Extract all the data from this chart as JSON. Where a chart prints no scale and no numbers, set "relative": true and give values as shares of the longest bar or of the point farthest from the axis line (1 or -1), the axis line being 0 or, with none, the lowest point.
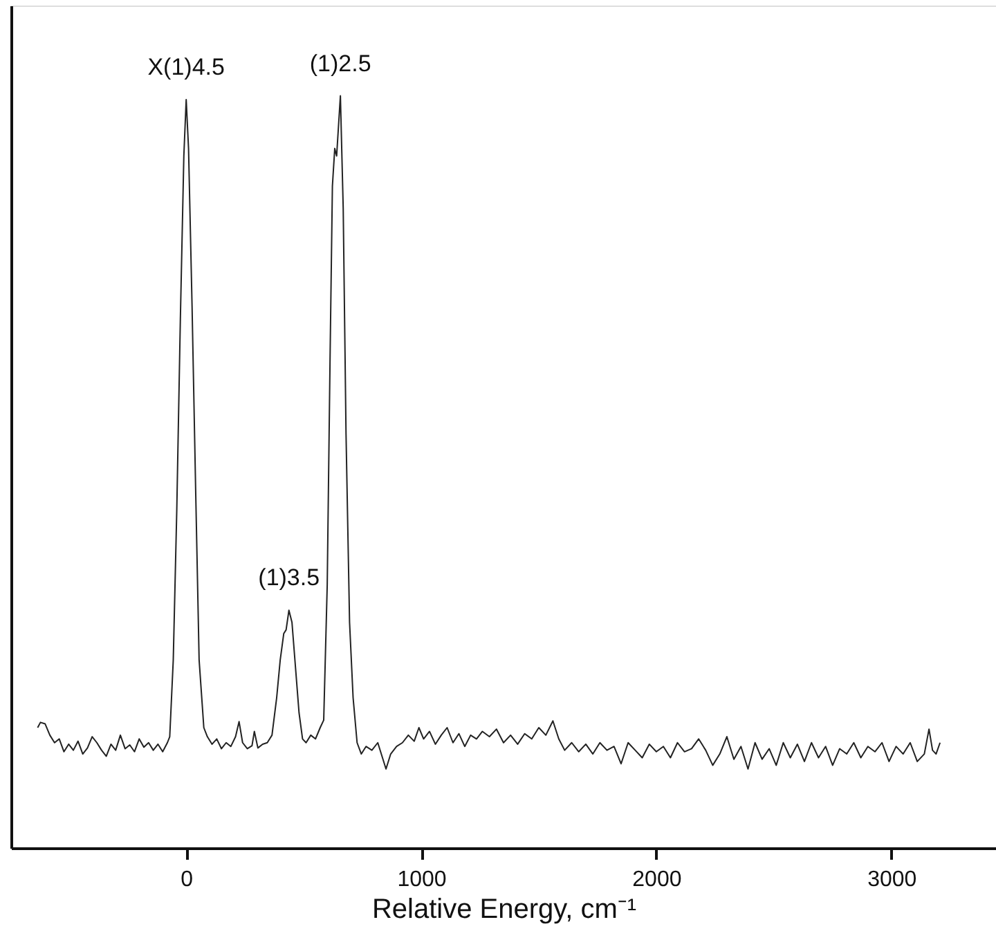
{
  "chart_data": {
    "type": "line",
    "relative": true,
    "xlabel": "Relative Energy, cm⁻¹",
    "xlim": [
      -745,
      3445
    ],
    "xticks": [
      0,
      1000,
      2000,
      3000
    ],
    "grid": false,
    "marker": "none",
    "line_style": "solid",
    "annotations": [
      {
        "text": "X(1)4.5",
        "x": 0,
        "y": 0.995
      },
      {
        "text": "(1)3.5",
        "x": 437,
        "y": 0.316
      },
      {
        "text": "(1)2.5",
        "x": 656,
        "y": 1.0
      }
    ],
    "series": [
      {
        "color": "#222222",
        "x": [
          -632,
          -620,
          -600,
          -580,
          -560,
          -540,
          -520,
          -500,
          -480,
          -460,
          -440,
          -420,
          -400,
          -380,
          -360,
          -340,
          -320,
          -300,
          -280,
          -260,
          -240,
          -220,
          -200,
          -180,
          -160,
          -140,
          -120,
          -100,
          -80,
          -70,
          -55,
          -40,
          -25,
          -10,
          0,
          10,
          25,
          40,
          55,
          75,
          90,
          110,
          130,
          150,
          170,
          190,
          210,
          225,
          240,
          260,
          280,
          290,
          305,
          325,
          345,
          365,
          385,
          400,
          415,
          425,
          437,
          450,
          465,
          480,
          495,
          510,
          530,
          550,
          570,
          585,
          600,
          612,
          622,
          632,
          640,
          656,
          668,
          680,
          695,
          710,
          727,
          745,
          765,
          790,
          815,
          835,
          850,
          870,
          895,
          920,
          945,
          970,
          990,
          1010,
          1035,
          1060,
          1085,
          1110,
          1135,
          1160,
          1185,
          1210,
          1235,
          1260,
          1290,
          1320,
          1350,
          1380,
          1410,
          1440,
          1470,
          1500,
          1530,
          1560,
          1585,
          1610,
          1640,
          1670,
          1700,
          1730,
          1760,
          1790,
          1820,
          1850,
          1880,
          1910,
          1940,
          1970,
          2000,
          2030,
          2060,
          2090,
          2120,
          2150,
          2180,
          2210,
          2240,
          2270,
          2300,
          2330,
          2360,
          2390,
          2420,
          2450,
          2480,
          2510,
          2540,
          2570,
          2600,
          2630,
          2660,
          2690,
          2720,
          2750,
          2780,
          2810,
          2840,
          2870,
          2900,
          2930,
          2960,
          2990,
          3020,
          3050,
          3080,
          3110,
          3140,
          3160,
          3175,
          3190,
          3207
        ],
        "values": [
          0.16,
          0.167,
          0.165,
          0.15,
          0.14,
          0.145,
          0.128,
          0.138,
          0.13,
          0.142,
          0.125,
          0.133,
          0.148,
          0.14,
          0.13,
          0.122,
          0.138,
          0.13,
          0.15,
          0.132,
          0.137,
          0.128,
          0.145,
          0.134,
          0.14,
          0.13,
          0.138,
          0.128,
          0.14,
          0.148,
          0.25,
          0.45,
          0.7,
          0.92,
          0.995,
          0.93,
          0.72,
          0.48,
          0.25,
          0.16,
          0.148,
          0.138,
          0.145,
          0.132,
          0.14,
          0.135,
          0.148,
          0.168,
          0.14,
          0.132,
          0.136,
          0.155,
          0.133,
          0.138,
          0.14,
          0.15,
          0.2,
          0.25,
          0.285,
          0.29,
          0.316,
          0.3,
          0.24,
          0.18,
          0.145,
          0.14,
          0.15,
          0.145,
          0.16,
          0.17,
          0.35,
          0.65,
          0.88,
          0.93,
          0.92,
          1.0,
          0.85,
          0.55,
          0.3,
          0.2,
          0.14,
          0.125,
          0.135,
          0.13,
          0.14,
          0.12,
          0.105,
          0.125,
          0.135,
          0.14,
          0.15,
          0.142,
          0.16,
          0.145,
          0.155,
          0.138,
          0.15,
          0.16,
          0.14,
          0.152,
          0.135,
          0.15,
          0.145,
          0.155,
          0.148,
          0.158,
          0.14,
          0.15,
          0.138,
          0.152,
          0.145,
          0.16,
          0.15,
          0.169,
          0.145,
          0.13,
          0.14,
          0.128,
          0.138,
          0.125,
          0.14,
          0.13,
          0.135,
          0.112,
          0.14,
          0.13,
          0.12,
          0.138,
          0.128,
          0.135,
          0.12,
          0.14,
          0.128,
          0.132,
          0.145,
          0.13,
          0.11,
          0.125,
          0.148,
          0.118,
          0.135,
          0.105,
          0.14,
          0.118,
          0.132,
          0.11,
          0.14,
          0.12,
          0.138,
          0.115,
          0.14,
          0.12,
          0.135,
          0.11,
          0.132,
          0.125,
          0.14,
          0.12,
          0.135,
          0.128,
          0.14,
          0.115,
          0.135,
          0.125,
          0.14,
          0.115,
          0.125,
          0.158,
          0.13,
          0.125,
          0.14
        ]
      }
    ]
  }
}
